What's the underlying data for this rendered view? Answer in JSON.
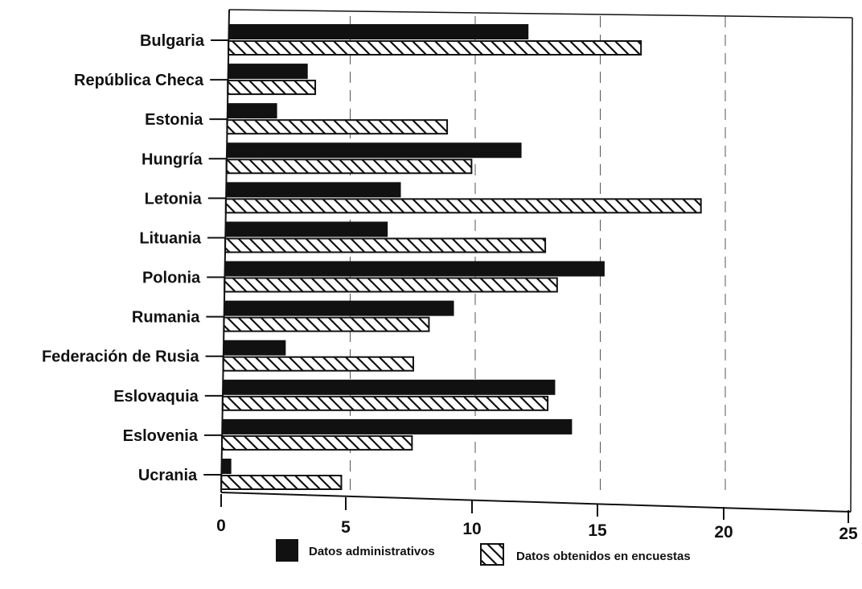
{
  "chart_data": {
    "type": "bar",
    "orientation": "horizontal",
    "categories": [
      "Bulgaria",
      "República Checa",
      "Estonia",
      "Hungría",
      "Letonia",
      "Lituania",
      "Polonia",
      "Rumania",
      "Federación de Rusia",
      "Eslovaquia",
      "Eslovenia",
      "Ucrania"
    ],
    "series": [
      {
        "name": "Datos administrativos",
        "fill": "solid",
        "color": "#111111",
        "values": [
          12.0,
          3.2,
          2.0,
          11.8,
          7.0,
          6.5,
          15.2,
          9.2,
          2.5,
          13.3,
          14.0,
          0.4
        ]
      },
      {
        "name": "Datos obtenidos en encuestas",
        "fill": "hatched",
        "color": "#111111",
        "values": [
          16.5,
          3.5,
          8.8,
          9.8,
          19.0,
          12.8,
          13.3,
          8.2,
          7.6,
          13.0,
          7.6,
          4.8
        ]
      }
    ],
    "x_ticks": [
      "0",
      "5",
      "10",
      "15",
      "20",
      "25"
    ],
    "xlim": [
      0,
      25
    ],
    "grid": "vertical-dashed",
    "legend_position": "bottom"
  }
}
